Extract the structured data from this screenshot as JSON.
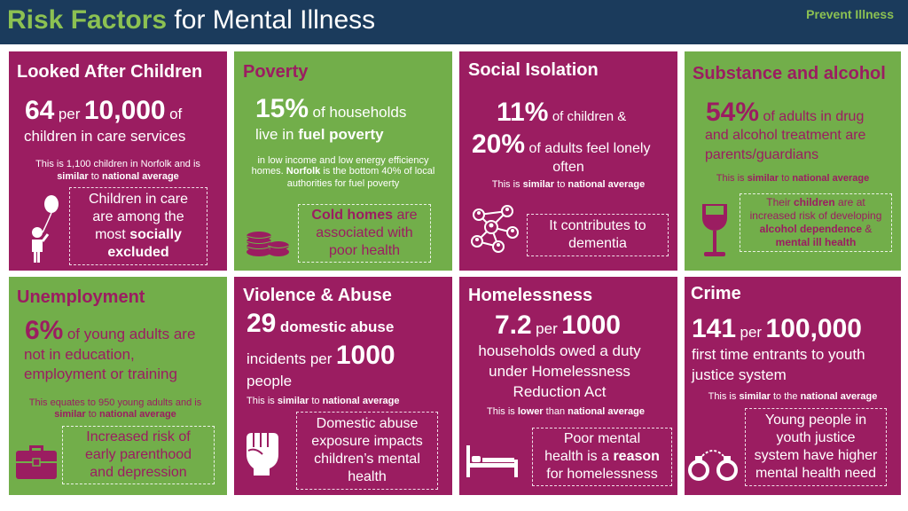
{
  "header": {
    "title_accent": "Risk Factors",
    "title_rest": "for Mental Illness",
    "tag": "Prevent Illness"
  },
  "panels": {
    "looked_after": {
      "title": "Looked After Children",
      "stat_num": "64",
      "stat_per": "per",
      "stat_den": "10,000",
      "stat_of": "of",
      "line2": "children in care services",
      "note1": "This is 1,100 children in Norfolk and is",
      "note2_b1": "similar",
      "note2_mid": "to",
      "note2_b2": "national average",
      "box_l1": "Children in care",
      "box_l2": "are among the",
      "box_l3a": "most",
      "box_l3b": "socially",
      "box_l4": "excluded"
    },
    "poverty": {
      "title": "Poverty",
      "stat": "15%",
      "stat_rest": "of households",
      "line2a": "live in",
      "line2b": "fuel poverty",
      "note1": "in low income and low energy efficiency",
      "note2a": "homes.",
      "note2b": "Norfolk",
      "note2c": "is the bottom 40% of local",
      "note3": "authorities for fuel poverty",
      "box_l1a": "Cold homes",
      "box_l1b": "are",
      "box_l2": "associated with",
      "box_l3": "poor health"
    },
    "social": {
      "title": "Social Isolation",
      "stat1": "11%",
      "stat1_rest": "of children &",
      "stat2": "20%",
      "stat2_rest": "of adults feel lonely",
      "line3": "often",
      "note_a": "This is",
      "note_b": "similar",
      "note_c": "to",
      "note_d": "national average",
      "box_l1": "It contributes to",
      "box_l2": "dementia"
    },
    "substance": {
      "title": "Substance and alcohol",
      "stat": "54%",
      "stat_rest": "of adults in drug",
      "line2": "and alcohol treatment are",
      "line3": "parents/guardians",
      "note_a": "This is",
      "note_b": "similar",
      "note_c": "to",
      "note_d": "national average",
      "box_l1a": "Their",
      "box_l1b": "children",
      "box_l1c": "are at",
      "box_l2": "increased risk of developing",
      "box_l3a": "alcohol dependence",
      "box_l3b": "&",
      "box_l4": "mental ill health"
    },
    "unemployment": {
      "title": "Unemployment",
      "stat": "6%",
      "stat_rest": "of young adults are",
      "line2": "not in education,",
      "line3": "employment or training",
      "note1": "This equates to 950 young adults and is",
      "note2_b1": "similar",
      "note2_mid": "to",
      "note2_b2": "national average",
      "box_l1": "Increased risk of",
      "box_l2": "early parenthood",
      "box_l3": "and depression"
    },
    "violence": {
      "title": "Violence & Abuse",
      "stat": "29",
      "stat_rest": "domestic abuse",
      "line2": "incidents per",
      "line2_num": "1000",
      "line3": "people",
      "note_a": "This is",
      "note_b": "similar",
      "note_c": "to",
      "note_d": "national average",
      "box_l1": "Domestic abuse",
      "box_l2": "exposure impacts",
      "box_l3": "children’s mental",
      "box_l4": "health"
    },
    "homelessness": {
      "title": "Homelessness",
      "stat": "7.2",
      "stat_per": "per",
      "stat_den": "1000",
      "line2": "households owed a duty",
      "line3": "under Homelessness",
      "line4": "Reduction Act",
      "note_a": "This is",
      "note_b": "lower",
      "note_c": "than",
      "note_d": "national average",
      "box_l1": "Poor mental",
      "box_l2a": "health is a",
      "box_l2b": "reason",
      "box_l3": "for homelessness"
    },
    "crime": {
      "title": "Crime",
      "stat": "141",
      "stat_per": "per",
      "stat_den": "100,000",
      "line2": "first time entrants to youth",
      "line3": "justice system",
      "note_a": "This is",
      "note_b": "similar",
      "note_c": "to the",
      "note_d": "national average",
      "box_l1": "Young people in",
      "box_l2": "youth justice",
      "box_l3": "system have higher",
      "box_l4": "mental health need"
    }
  },
  "icons": {
    "balloon": "child-balloon-icon",
    "coins": "coins-icon",
    "network": "network-icon",
    "wine": "wine-glass-icon",
    "briefcase": "briefcase-icon",
    "fist": "fist-icon",
    "bed": "bed-icon",
    "handcuffs": "handcuffs-icon"
  },
  "colors": {
    "navy": "#1b3b5c",
    "purple": "#9b1d61",
    "green": "#72ae4a",
    "accent_green": "#8cc152"
  }
}
